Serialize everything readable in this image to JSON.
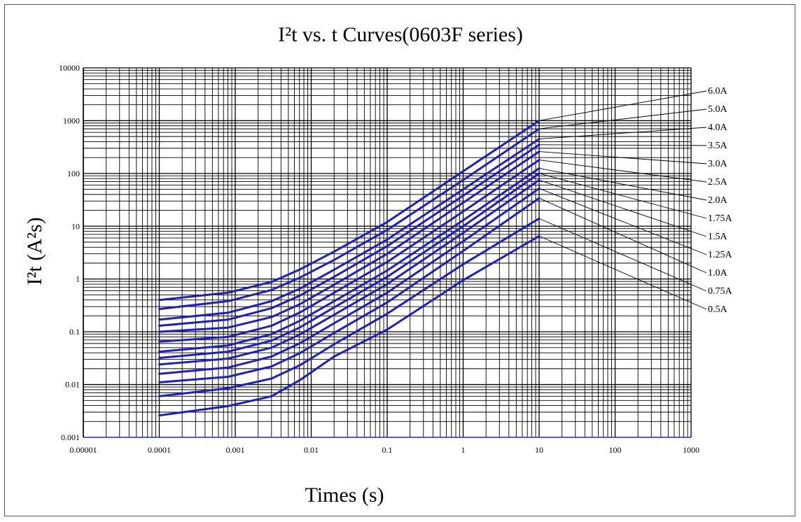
{
  "chart_data": {
    "type": "line",
    "title": "I²t  vs. t  Curves(0603F series)",
    "xlabel": "Times (s)",
    "ylabel": "I²t (A²s)",
    "x_scale": "log",
    "y_scale": "log",
    "xlim": [
      1e-05,
      1000
    ],
    "ylim": [
      0.001,
      10000
    ],
    "x_ticks": [
      "0.00001",
      "0.0001",
      "0.001",
      "0.01",
      "0.1",
      "1",
      "10",
      "100",
      "1000"
    ],
    "y_ticks": [
      "10000",
      "1000",
      "100",
      "10",
      "1",
      "0.1",
      "0.01",
      "0.001"
    ],
    "grid": true,
    "line_color": "#1f1fbf",
    "grid_color": "#000000",
    "legend": "right, leader lines to curve ends",
    "series": [
      {
        "name": "6.0A",
        "x": [
          0.0001,
          0.0008,
          0.003,
          0.007,
          0.02,
          0.1,
          1,
          10
        ],
        "y": [
          0.4,
          0.55,
          0.88,
          1.5,
          3.3,
          12,
          110,
          1000
        ]
      },
      {
        "name": "5.0A",
        "x": [
          0.0001,
          0.0008,
          0.003,
          0.007,
          0.02,
          0.1,
          1,
          10
        ],
        "y": [
          0.27,
          0.38,
          0.62,
          1.05,
          2.3,
          8.5,
          75,
          700
        ]
      },
      {
        "name": "4.0A",
        "x": [
          0.0001,
          0.0008,
          0.003,
          0.007,
          0.02,
          0.1,
          1,
          10
        ],
        "y": [
          0.17,
          0.23,
          0.38,
          0.65,
          1.5,
          5.6,
          50,
          450
        ]
      },
      {
        "name": "3.5A",
        "x": [
          0.0001,
          0.0008,
          0.003,
          0.007,
          0.02,
          0.1,
          1,
          10
        ],
        "y": [
          0.13,
          0.17,
          0.28,
          0.48,
          1.1,
          4.2,
          38,
          350
        ]
      },
      {
        "name": "3.0A",
        "x": [
          0.0001,
          0.0008,
          0.003,
          0.007,
          0.02,
          0.1,
          1,
          10
        ],
        "y": [
          0.1,
          0.12,
          0.19,
          0.33,
          0.78,
          3.0,
          28,
          260
        ]
      },
      {
        "name": "2.5A",
        "x": [
          0.0001,
          0.0008,
          0.003,
          0.007,
          0.02,
          0.1,
          1,
          10
        ],
        "y": [
          0.065,
          0.08,
          0.13,
          0.23,
          0.55,
          2.1,
          19,
          180
        ]
      },
      {
        "name": "2.0A",
        "x": [
          0.0001,
          0.0008,
          0.003,
          0.007,
          0.02,
          0.1,
          1,
          10
        ],
        "y": [
          0.042,
          0.055,
          0.09,
          0.16,
          0.38,
          1.45,
          13,
          125
        ]
      },
      {
        "name": "1.75A",
        "x": [
          0.0001,
          0.0008,
          0.003,
          0.007,
          0.02,
          0.1,
          1,
          10
        ],
        "y": [
          0.032,
          0.042,
          0.068,
          0.12,
          0.29,
          1.1,
          10,
          100
        ]
      },
      {
        "name": "1.5A",
        "x": [
          0.0001,
          0.0008,
          0.003,
          0.007,
          0.02,
          0.1,
          1,
          10
        ],
        "y": [
          0.024,
          0.031,
          0.05,
          0.088,
          0.21,
          0.8,
          7.5,
          75
        ]
      },
      {
        "name": "1.25A",
        "x": [
          0.0001,
          0.0008,
          0.003,
          0.007,
          0.02,
          0.1,
          1,
          10
        ],
        "y": [
          0.016,
          0.021,
          0.034,
          0.06,
          0.145,
          0.55,
          5.2,
          52
        ]
      },
      {
        "name": "1.0A",
        "x": [
          0.0001,
          0.0008,
          0.003,
          0.007,
          0.02,
          0.1,
          1,
          10
        ],
        "y": [
          0.011,
          0.014,
          0.022,
          0.039,
          0.095,
          0.36,
          3.4,
          34
        ]
      },
      {
        "name": "0.75A",
        "x": [
          0.0001,
          0.0008,
          0.003,
          0.007,
          0.02,
          0.1,
          1,
          10
        ],
        "y": [
          0.006,
          0.0085,
          0.013,
          0.023,
          0.058,
          0.22,
          1.9,
          14
        ]
      },
      {
        "name": "0.5A",
        "x": [
          0.0001,
          0.0008,
          0.003,
          0.007,
          0.02,
          0.1,
          1,
          10
        ],
        "y": [
          0.0026,
          0.0039,
          0.006,
          0.012,
          0.034,
          0.11,
          0.95,
          6.5
        ]
      }
    ]
  }
}
